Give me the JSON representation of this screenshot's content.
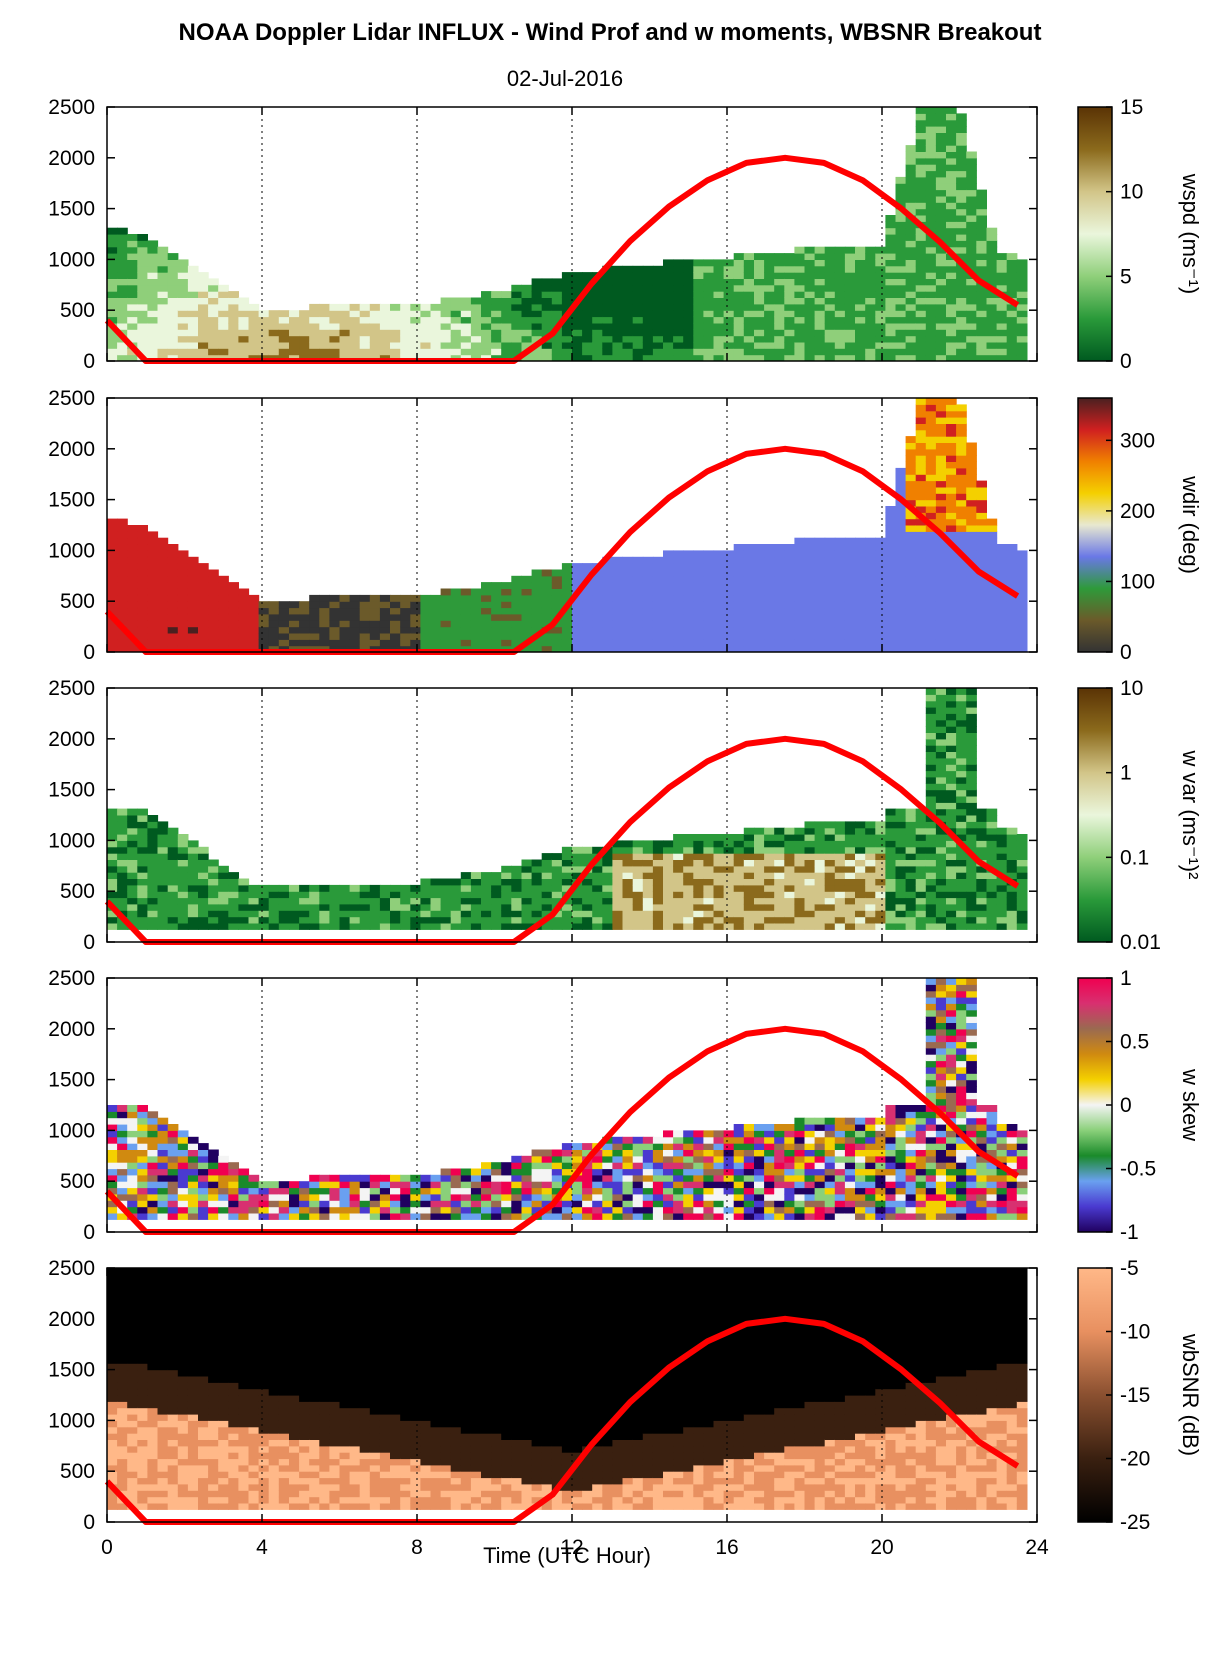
{
  "chart_data": {
    "title": "NOAA Doppler Lidar INFLUX - Wind Prof and w moments, WBSNR Breakout",
    "subtitle": "02-Jul-2016",
    "type": "heatmap",
    "xlabel": "Time (UTC Hour)",
    "xlim": [
      0,
      24
    ],
    "xticks": [
      "0",
      "4",
      "8",
      "12",
      "16",
      "20",
      "24"
    ],
    "ylim": [
      0,
      2500
    ],
    "yticks": [
      "0",
      "500",
      "1000",
      "1500",
      "2000",
      "2500"
    ],
    "grid": "dotted vertical lines at x = 4, 8, 12, 16, 20",
    "overlay_curve": {
      "color": "#ff0000",
      "x": [
        0,
        1,
        10.5,
        11.5,
        12.5,
        13.5,
        14.5,
        15.5,
        16.5,
        17.5,
        18.5,
        19.5,
        20.5,
        21.5,
        22.5,
        23.5
      ],
      "y": [
        400,
        0,
        0,
        270,
        760,
        1180,
        1520,
        1780,
        1950,
        2000,
        1950,
        1780,
        1500,
        1170,
        790,
        550
      ]
    },
    "panels": [
      {
        "name": "wspd",
        "colorbar_label": "wspd (ms⁻¹)",
        "colorbar_ticks": [
          "0",
          "5",
          "10",
          "15"
        ],
        "colorbar_range": [
          0,
          15
        ],
        "colorbar_colors": [
          "#005a20",
          "#2a9a3a",
          "#8fcf7a",
          "#eaf6dc",
          "#d2c588",
          "#8b6a1c",
          "#5a3305"
        ],
        "data_top_m": [
          {
            "t": 0,
            "h": 1330
          },
          {
            "t": 1,
            "h": 1250
          },
          {
            "t": 2,
            "h": 1020
          },
          {
            "t": 3,
            "h": 720
          },
          {
            "t": 4,
            "h": 520
          },
          {
            "t": 6,
            "h": 540
          },
          {
            "t": 8,
            "h": 560
          },
          {
            "t": 10,
            "h": 680
          },
          {
            "t": 12,
            "h": 880
          },
          {
            "t": 14,
            "h": 960
          },
          {
            "t": 16,
            "h": 1020
          },
          {
            "t": 18,
            "h": 1100
          },
          {
            "t": 20,
            "h": 1150
          },
          {
            "t": 21,
            "h": 2500
          },
          {
            "t": 22,
            "h": 2500
          },
          {
            "t": 23,
            "h": 1100
          },
          {
            "t": 23.8,
            "h": 970
          }
        ]
      },
      {
        "name": "wdir",
        "colorbar_label": "wdir (deg)",
        "colorbar_ticks": [
          "0",
          "100",
          "200",
          "300"
        ],
        "colorbar_range": [
          0,
          360
        ],
        "colorbar_colors": [
          "#333333",
          "#6b5a2a",
          "#2e9a3a",
          "#6a78e6",
          "#e8e8d0",
          "#f4d000",
          "#f08000",
          "#d02020",
          "#4a2020"
        ]
      },
      {
        "name": "w var",
        "colorbar_label": "w var (ms⁻¹)²",
        "colorbar_ticks": [
          "0.01",
          "0.1",
          "1",
          "10"
        ],
        "colorbar_range": [
          0.01,
          10
        ],
        "colorbar_scale": "log",
        "colorbar_colors": [
          "#005a20",
          "#2a9a3a",
          "#8fcf7a",
          "#eaf6dc",
          "#d2c588",
          "#8b6a1c",
          "#5a3305"
        ]
      },
      {
        "name": "w skew",
        "colorbar_label": "w skew",
        "colorbar_ticks": [
          "-1",
          "-0.5",
          "0",
          "0.5",
          "1"
        ],
        "colorbar_range": [
          -1,
          1
        ],
        "colorbar_colors": [
          "#200060",
          "#4a3ad0",
          "#6aa0f0",
          "#1a8a2a",
          "#8ad07a",
          "#f4f4f4",
          "#f4d000",
          "#d08a10",
          "#9a6a50",
          "#d83070",
          "#f00050"
        ]
      },
      {
        "name": "wbSNR",
        "colorbar_label": "wbSNR (dB)",
        "colorbar_ticks": [
          "-25",
          "-20",
          "-15",
          "-10",
          "-5"
        ],
        "colorbar_range": [
          -25,
          -5
        ],
        "colorbar_colors": [
          "#000000",
          "#3a2010",
          "#8a5030",
          "#e89060",
          "#ffb888"
        ]
      }
    ]
  }
}
